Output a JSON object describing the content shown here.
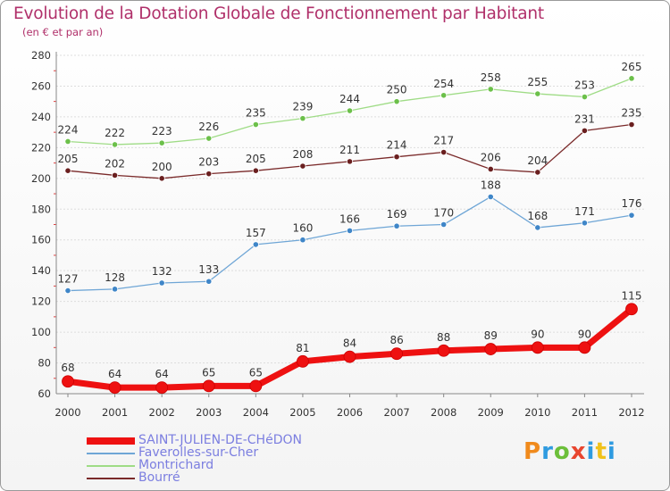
{
  "title": "Evolution de la Dotation Globale de Fonctionnement par Habitant",
  "subtitle": "(en € et par an)",
  "logo": {
    "text": "Proxiti",
    "colors": [
      "#f08a1c",
      "#2f9be0",
      "#6cbf3a",
      "#e8462f",
      "#2f9be0",
      "#f0c21c",
      "#2f9be0"
    ]
  },
  "chart_data": {
    "type": "line",
    "title": "Evolution de la Dotation Globale de Fonctionnement par Habitant",
    "subtitle": "(en € et par an)",
    "xlabel": "",
    "ylabel": "",
    "x": [
      "2000",
      "2001",
      "2002",
      "2003",
      "2004",
      "2005",
      "2006",
      "2007",
      "2008",
      "2009",
      "2010",
      "2011",
      "2012"
    ],
    "ylim": [
      60,
      280
    ],
    "yticks": [
      60,
      80,
      100,
      120,
      140,
      160,
      180,
      200,
      220,
      240,
      260,
      280
    ],
    "grid": "horizontal",
    "legend_position": "bottom-left",
    "series": [
      {
        "name": "SAINT-JULIEN-DE-CHéDON",
        "color": "#ee1111",
        "line_color": "#ee1111",
        "marker_color": "#ee1111",
        "thick": true,
        "values": [
          68,
          64,
          64,
          65,
          65,
          81,
          84,
          86,
          88,
          89,
          90,
          90,
          115
        ]
      },
      {
        "name": "Faverolles-sur-Cher",
        "color": "#5b9bd5",
        "line_color": "#6fa6d6",
        "marker_color": "#3f86c8",
        "thick": false,
        "values": [
          127,
          128,
          132,
          133,
          157,
          160,
          166,
          169,
          170,
          188,
          168,
          171,
          176
        ]
      },
      {
        "name": "Montrichard",
        "color": "#8ad36a",
        "line_color": "#9fdc86",
        "marker_color": "#6cc04a",
        "thick": false,
        "values": [
          224,
          222,
          223,
          226,
          235,
          239,
          244,
          250,
          254,
          258,
          255,
          253,
          265
        ]
      },
      {
        "name": "Bourré",
        "color": "#7a2a2a",
        "line_color": "#7a2a2a",
        "marker_color": "#6a1f1f",
        "thick": false,
        "values": [
          205,
          202,
          200,
          203,
          205,
          208,
          211,
          214,
          217,
          206,
          204,
          231,
          235
        ]
      }
    ]
  }
}
